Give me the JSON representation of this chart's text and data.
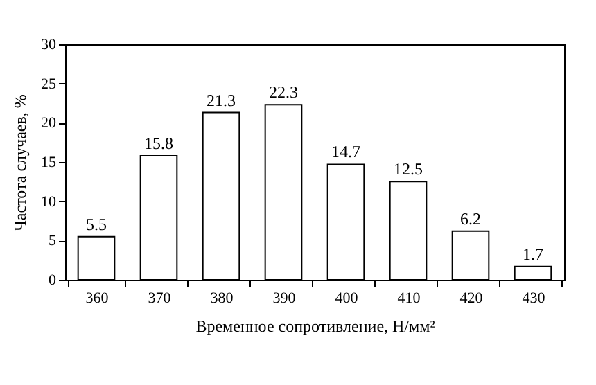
{
  "chart_data": {
    "type": "bar",
    "xlabel": "Временное сопротивление, Н/мм²",
    "ylabel": "Частота случаев, %",
    "categories": [
      "360",
      "370",
      "380",
      "390",
      "400",
      "410",
      "420",
      "430"
    ],
    "values": [
      5.5,
      15.8,
      21.3,
      22.3,
      14.7,
      12.5,
      6.2,
      1.7
    ],
    "color": "#ffffff",
    "ylim": [
      0,
      30
    ],
    "yticks": [
      0,
      5,
      10,
      15,
      20,
      25,
      30
    ],
    "grid": false,
    "data_labels": true
  }
}
